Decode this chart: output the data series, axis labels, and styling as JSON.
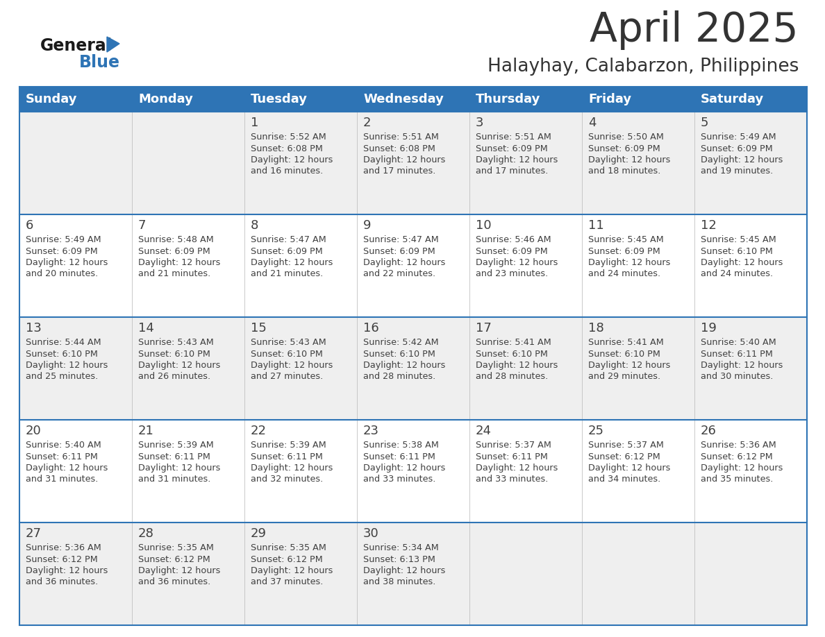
{
  "title": "April 2025",
  "subtitle": "Halayhay, Calabarzon, Philippines",
  "header_bg": "#2E74B5",
  "header_text": "#FFFFFF",
  "row_bg_light": "#EFEFEF",
  "row_bg_white": "#FFFFFF",
  "border_color": "#2E74B5",
  "text_color": "#404040",
  "days_of_week": [
    "Sunday",
    "Monday",
    "Tuesday",
    "Wednesday",
    "Thursday",
    "Friday",
    "Saturday"
  ],
  "calendar": [
    [
      {
        "day": "",
        "sunrise": "",
        "sunset": "",
        "daylight_min": ""
      },
      {
        "day": "",
        "sunrise": "",
        "sunset": "",
        "daylight_min": ""
      },
      {
        "day": "1",
        "sunrise": "5:52 AM",
        "sunset": "6:08 PM",
        "daylight_min": "16"
      },
      {
        "day": "2",
        "sunrise": "5:51 AM",
        "sunset": "6:08 PM",
        "daylight_min": "17"
      },
      {
        "day": "3",
        "sunrise": "5:51 AM",
        "sunset": "6:09 PM",
        "daylight_min": "17"
      },
      {
        "day": "4",
        "sunrise": "5:50 AM",
        "sunset": "6:09 PM",
        "daylight_min": "18"
      },
      {
        "day": "5",
        "sunrise": "5:49 AM",
        "sunset": "6:09 PM",
        "daylight_min": "19"
      }
    ],
    [
      {
        "day": "6",
        "sunrise": "5:49 AM",
        "sunset": "6:09 PM",
        "daylight_min": "20"
      },
      {
        "day": "7",
        "sunrise": "5:48 AM",
        "sunset": "6:09 PM",
        "daylight_min": "21"
      },
      {
        "day": "8",
        "sunrise": "5:47 AM",
        "sunset": "6:09 PM",
        "daylight_min": "21"
      },
      {
        "day": "9",
        "sunrise": "5:47 AM",
        "sunset": "6:09 PM",
        "daylight_min": "22"
      },
      {
        "day": "10",
        "sunrise": "5:46 AM",
        "sunset": "6:09 PM",
        "daylight_min": "23"
      },
      {
        "day": "11",
        "sunrise": "5:45 AM",
        "sunset": "6:09 PM",
        "daylight_min": "24"
      },
      {
        "day": "12",
        "sunrise": "5:45 AM",
        "sunset": "6:10 PM",
        "daylight_min": "24"
      }
    ],
    [
      {
        "day": "13",
        "sunrise": "5:44 AM",
        "sunset": "6:10 PM",
        "daylight_min": "25"
      },
      {
        "day": "14",
        "sunrise": "5:43 AM",
        "sunset": "6:10 PM",
        "daylight_min": "26"
      },
      {
        "day": "15",
        "sunrise": "5:43 AM",
        "sunset": "6:10 PM",
        "daylight_min": "27"
      },
      {
        "day": "16",
        "sunrise": "5:42 AM",
        "sunset": "6:10 PM",
        "daylight_min": "28"
      },
      {
        "day": "17",
        "sunrise": "5:41 AM",
        "sunset": "6:10 PM",
        "daylight_min": "28"
      },
      {
        "day": "18",
        "sunrise": "5:41 AM",
        "sunset": "6:10 PM",
        "daylight_min": "29"
      },
      {
        "day": "19",
        "sunrise": "5:40 AM",
        "sunset": "6:11 PM",
        "daylight_min": "30"
      }
    ],
    [
      {
        "day": "20",
        "sunrise": "5:40 AM",
        "sunset": "6:11 PM",
        "daylight_min": "31"
      },
      {
        "day": "21",
        "sunrise": "5:39 AM",
        "sunset": "6:11 PM",
        "daylight_min": "31"
      },
      {
        "day": "22",
        "sunrise": "5:39 AM",
        "sunset": "6:11 PM",
        "daylight_min": "32"
      },
      {
        "day": "23",
        "sunrise": "5:38 AM",
        "sunset": "6:11 PM",
        "daylight_min": "33"
      },
      {
        "day": "24",
        "sunrise": "5:37 AM",
        "sunset": "6:11 PM",
        "daylight_min": "33"
      },
      {
        "day": "25",
        "sunrise": "5:37 AM",
        "sunset": "6:12 PM",
        "daylight_min": "34"
      },
      {
        "day": "26",
        "sunrise": "5:36 AM",
        "sunset": "6:12 PM",
        "daylight_min": "35"
      }
    ],
    [
      {
        "day": "27",
        "sunrise": "5:36 AM",
        "sunset": "6:12 PM",
        "daylight_min": "36"
      },
      {
        "day": "28",
        "sunrise": "5:35 AM",
        "sunset": "6:12 PM",
        "daylight_min": "36"
      },
      {
        "day": "29",
        "sunrise": "5:35 AM",
        "sunset": "6:12 PM",
        "daylight_min": "37"
      },
      {
        "day": "30",
        "sunrise": "5:34 AM",
        "sunset": "6:13 PM",
        "daylight_min": "38"
      },
      {
        "day": "",
        "sunrise": "",
        "sunset": "",
        "daylight_min": ""
      },
      {
        "day": "",
        "sunrise": "",
        "sunset": "",
        "daylight_min": ""
      },
      {
        "day": "",
        "sunrise": "",
        "sunset": "",
        "daylight_min": ""
      }
    ]
  ]
}
